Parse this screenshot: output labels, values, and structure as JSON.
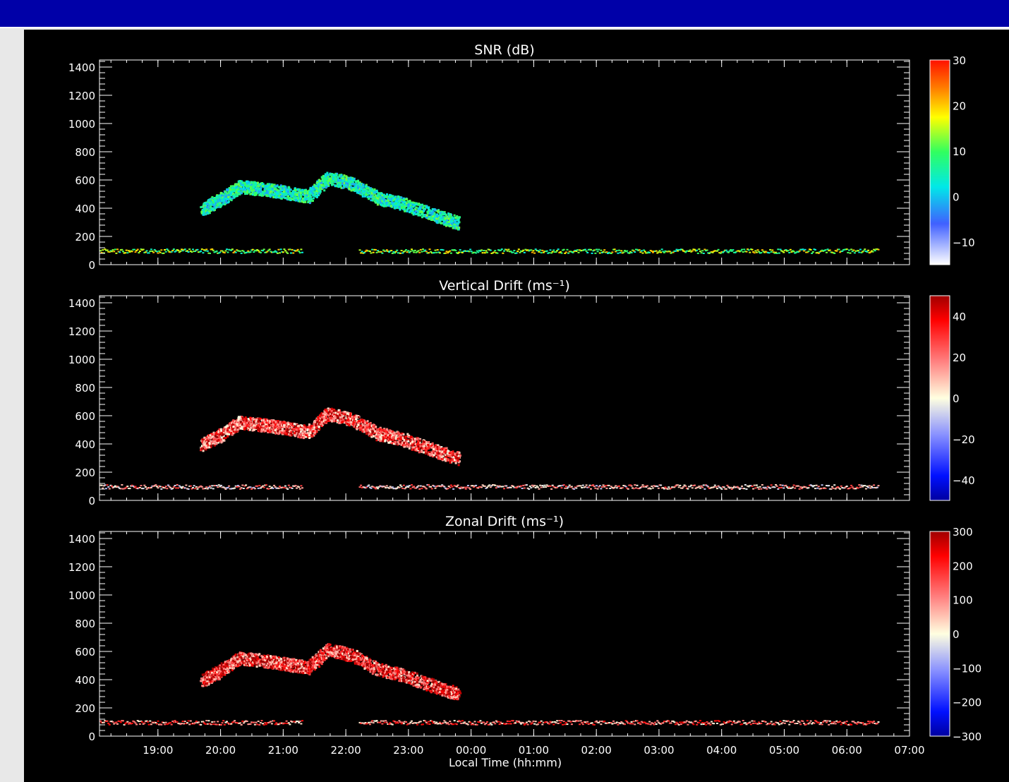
{
  "colors": {
    "header_bar": "#0000a8",
    "background": "#000000",
    "axis": "#ffffff"
  },
  "xlabel": "Local Time (hh:mm)",
  "chart_data": [
    {
      "type": "heatmap",
      "title": "SNR (dB)",
      "xlabel": "Local Time (hh:mm)",
      "ylabel": "",
      "x_ticks": [
        "19:00",
        "20:00",
        "21:00",
        "22:00",
        "23:00",
        "00:00",
        "01:00",
        "02:00",
        "03:00",
        "04:00",
        "05:00",
        "06:00",
        "07:00"
      ],
      "x_range": [
        "18:04",
        "07:00"
      ],
      "ylim": [
        0,
        1450
      ],
      "y_ticks": [
        0,
        200,
        400,
        600,
        800,
        1000,
        1200,
        1400
      ],
      "colorbar": {
        "range": [
          -15,
          30
        ],
        "ticks": [
          -10,
          0,
          10,
          20,
          30
        ],
        "colormap": "white-blue-cyan-green-yellow-red"
      },
      "features": [
        {
          "name": "plume",
          "points": [
            [
              19.7,
              380
            ],
            [
              20.0,
              450
            ],
            [
              20.3,
              540
            ],
            [
              20.7,
              520
            ],
            [
              21.0,
              500
            ],
            [
              21.4,
              470
            ],
            [
              21.7,
              600
            ],
            [
              22.1,
              560
            ],
            [
              22.5,
              460
            ],
            [
              22.9,
              420
            ],
            [
              23.4,
              340
            ],
            [
              23.8,
              280
            ]
          ],
          "value": 5
        },
        {
          "name": "low band",
          "x_start": 18.0,
          "x_end": 30.5,
          "altitude": 100,
          "value": 12
        }
      ]
    },
    {
      "type": "heatmap",
      "title": "Vertical Drift (ms⁻¹)",
      "xlabel": "Local Time (hh:mm)",
      "ylabel": "",
      "x_ticks": [
        "19:00",
        "20:00",
        "21:00",
        "22:00",
        "23:00",
        "00:00",
        "01:00",
        "02:00",
        "03:00",
        "04:00",
        "05:00",
        "06:00",
        "07:00"
      ],
      "x_range": [
        "18:04",
        "07:00"
      ],
      "ylim": [
        0,
        1450
      ],
      "y_ticks": [
        0,
        200,
        400,
        600,
        800,
        1000,
        1200,
        1400
      ],
      "colorbar": {
        "range": [
          -50,
          50
        ],
        "ticks": [
          -40,
          -20,
          0,
          20,
          40
        ],
        "colormap": "blue-white-red"
      },
      "features": [
        {
          "name": "plume",
          "points": [
            [
              19.7,
              380
            ],
            [
              20.0,
              450
            ],
            [
              20.3,
              540
            ],
            [
              20.7,
              520
            ],
            [
              21.0,
              500
            ],
            [
              21.4,
              470
            ],
            [
              21.7,
              600
            ],
            [
              22.1,
              560
            ],
            [
              22.5,
              460
            ],
            [
              22.9,
              420
            ],
            [
              23.4,
              340
            ],
            [
              23.8,
              280
            ]
          ],
          "value": 25
        },
        {
          "name": "low band",
          "x_start": 18.0,
          "x_end": 30.5,
          "altitude": 100,
          "value": 10
        }
      ]
    },
    {
      "type": "heatmap",
      "title": "Zonal Drift (ms⁻¹)",
      "xlabel": "Local Time (hh:mm)",
      "ylabel": "",
      "x_ticks": [
        "19:00",
        "20:00",
        "21:00",
        "22:00",
        "23:00",
        "00:00",
        "01:00",
        "02:00",
        "03:00",
        "04:00",
        "05:00",
        "06:00",
        "07:00"
      ],
      "x_range": [
        "18:04",
        "07:00"
      ],
      "ylim": [
        0,
        1450
      ],
      "y_ticks": [
        0,
        200,
        400,
        600,
        800,
        1000,
        1200,
        1400
      ],
      "colorbar": {
        "range": [
          -300,
          300
        ],
        "ticks": [
          -300,
          -200,
          -100,
          0,
          100,
          200,
          300
        ],
        "colormap": "blue-white-red"
      },
      "features": [
        {
          "name": "plume",
          "points": [
            [
              19.7,
              380
            ],
            [
              20.0,
              450
            ],
            [
              20.3,
              540
            ],
            [
              20.7,
              520
            ],
            [
              21.0,
              500
            ],
            [
              21.4,
              470
            ],
            [
              21.7,
              600
            ],
            [
              22.1,
              560
            ],
            [
              22.5,
              460
            ],
            [
              22.9,
              420
            ],
            [
              23.4,
              340
            ],
            [
              23.8,
              280
            ]
          ],
          "value": 180
        },
        {
          "name": "low band",
          "x_start": 18.0,
          "x_end": 30.5,
          "altitude": 100,
          "value": 120
        }
      ]
    }
  ]
}
